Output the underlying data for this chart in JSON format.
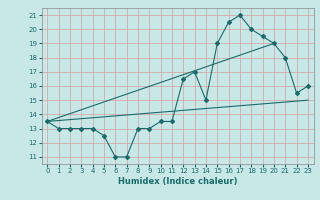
{
  "xlabel": "Humidex (Indice chaleur)",
  "bg_color": "#c8e8e8",
  "line_color": "#1a6b6b",
  "grid_color": "#d4a0a0",
  "xlim": [
    -0.5,
    23.5
  ],
  "ylim": [
    10.5,
    21.5
  ],
  "xticks": [
    0,
    1,
    2,
    3,
    4,
    5,
    6,
    7,
    8,
    9,
    10,
    11,
    12,
    13,
    14,
    15,
    16,
    17,
    18,
    19,
    20,
    21,
    22,
    23
  ],
  "yticks": [
    11,
    12,
    13,
    14,
    15,
    16,
    17,
    18,
    19,
    20,
    21
  ],
  "line1_x": [
    0,
    1,
    2,
    3,
    4,
    5,
    6,
    7,
    8,
    9,
    10,
    11,
    12,
    13,
    14,
    15,
    16,
    17,
    18,
    19,
    20,
    21,
    22,
    23
  ],
  "line1_y": [
    13.5,
    13.0,
    13.0,
    13.0,
    13.0,
    12.5,
    11.0,
    11.0,
    13.0,
    13.0,
    13.5,
    13.5,
    16.5,
    17.0,
    15.0,
    19.0,
    20.5,
    21.0,
    20.0,
    19.5,
    19.0,
    18.0,
    15.5,
    16.0
  ],
  "line2_x": [
    0,
    20
  ],
  "line2_y": [
    13.5,
    19.0
  ],
  "line3_x": [
    0,
    23
  ],
  "line3_y": [
    13.5,
    15.0
  ]
}
